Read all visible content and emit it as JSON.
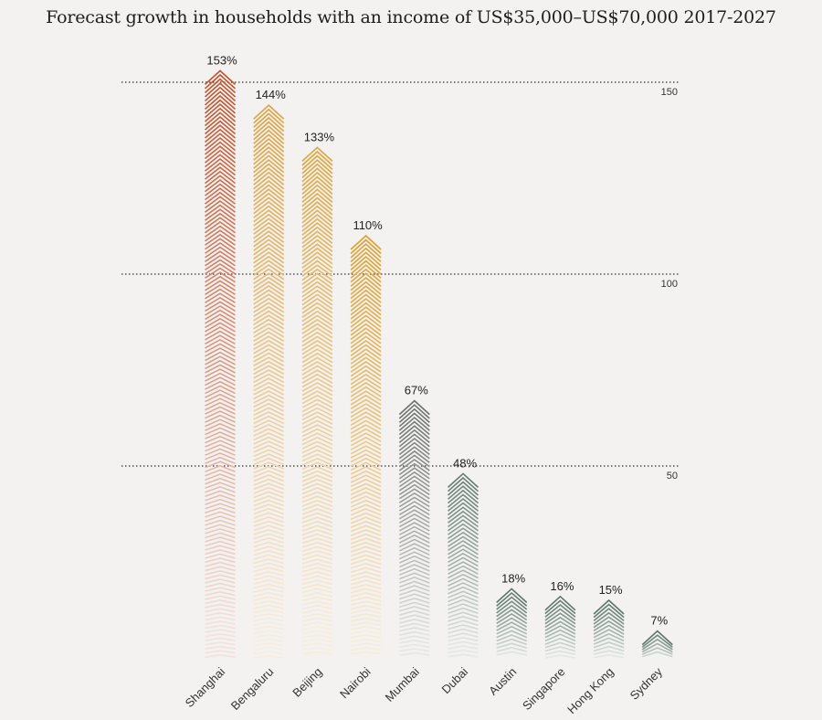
{
  "chart_data": {
    "type": "bar",
    "title": "Forecast growth in households with an income of US$35,000–US$70,000  2017-2027",
    "categories": [
      "Shanghai",
      "Bengaluru",
      "Beijing",
      "Nairobi",
      "Mumbai",
      "Dubai",
      "Austin",
      "Singapore",
      "Hong Kong",
      "Sydney"
    ],
    "values": [
      153,
      144,
      133,
      110,
      67,
      48,
      18,
      16,
      15,
      7
    ],
    "data_labels": [
      "153%",
      "144%",
      "133%",
      "110%",
      "67%",
      "48%",
      "18%",
      "16%",
      "15%",
      "7%"
    ],
    "colors": [
      "#c4512b",
      "#e0a03e",
      "#e2a43c",
      "#df9f2e",
      "#6e7271",
      "#667d75",
      "#5c776d",
      "#5c776d",
      "#5c776d",
      "#5c776d"
    ],
    "ylim": [
      0,
      160
    ],
    "gridlines": [
      50,
      100,
      150
    ],
    "tick_labels": [
      "50",
      "100",
      "150"
    ],
    "grid": true,
    "xlabel": "",
    "ylabel": ""
  }
}
